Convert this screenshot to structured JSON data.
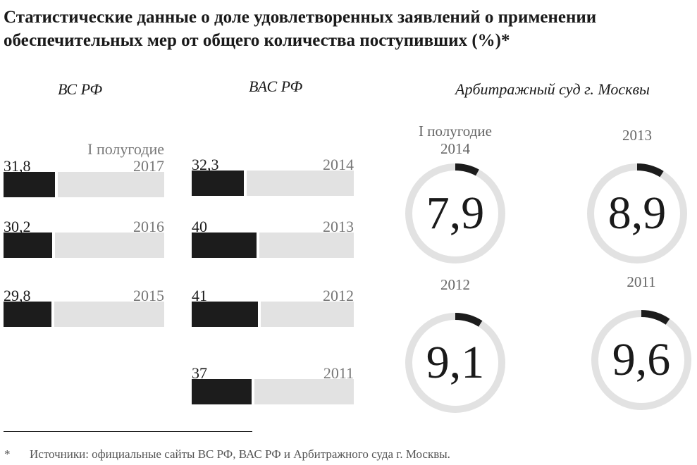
{
  "title": {
    "line1": "Статистические данные о доле удовлетворенных заявлений о применении",
    "line2": "обеспечительных мер от общего количества поступивших (%)*"
  },
  "chart_data": [
    {
      "type": "bar",
      "title": "ВС РФ",
      "categories": [
        "2017",
        "2016",
        "2015"
      ],
      "category_note": "I полугодие",
      "values": [
        31.8,
        30.2,
        29.8
      ],
      "value_labels": [
        "31,8",
        "30,2",
        "29,8"
      ],
      "ylim": [
        0,
        100
      ]
    },
    {
      "type": "bar",
      "title": "ВАС РФ",
      "categories": [
        "2014",
        "2013",
        "2012",
        "2011"
      ],
      "values": [
        32.3,
        40,
        41,
        37
      ],
      "value_labels": [
        "32,3",
        "40",
        "41",
        "37"
      ],
      "ylim": [
        0,
        100
      ]
    },
    {
      "type": "pie",
      "title": "Арбитражный суд г. Москвы",
      "categories": [
        "I полугодие 2014",
        "2013",
        "2012",
        "2011"
      ],
      "values": [
        7.9,
        8.9,
        9.1,
        9.6
      ],
      "value_labels": [
        "7,9",
        "8,9",
        "9,1",
        "9,6"
      ]
    }
  ],
  "colors": {
    "fill": "#1c1c1c",
    "track": "#e2e2e2"
  },
  "footnote": {
    "mark": "*",
    "text": "Источники: официальные сайты ВС РФ, ВАС РФ и Арбитражного суда г. Москвы."
  }
}
